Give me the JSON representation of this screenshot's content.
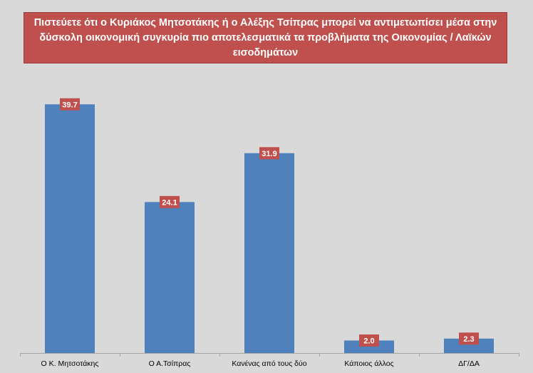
{
  "chart_data": {
    "type": "bar",
    "title": "Πιστεύετε ότι ο Κυριάκος Μητσοτάκης ή ο Αλέξης Τσίπρας μπορεί να αντιμετωπίσει μέσα στην δύσκολη οικονομική συγκυρία πιο αποτελεσματικά τα προβλήματα της Οικονομίας / Λαϊκών εισοδημάτων",
    "categories": [
      "Ο Κ. Μητσοτάκης",
      "Ο Α.Τσίπρας",
      "Κανένας από τους δύο",
      "Κάποιος άλλος",
      "ΔΓ/ΔΑ"
    ],
    "values": [
      39.7,
      24.1,
      31.9,
      2.0,
      2.3
    ],
    "value_labels": [
      "39.7",
      "24.1",
      "31.9",
      "2.0",
      "2.3"
    ],
    "xlabel": "",
    "ylabel": "",
    "ylim": [
      0,
      40.3
    ],
    "grid": false,
    "legend": "none"
  },
  "colors": {
    "bar": "#4f81bd",
    "label_box": "#c0504d",
    "title_box": "#c0504d",
    "background": "#d9d9d9",
    "axis": "#a6a6a6"
  }
}
